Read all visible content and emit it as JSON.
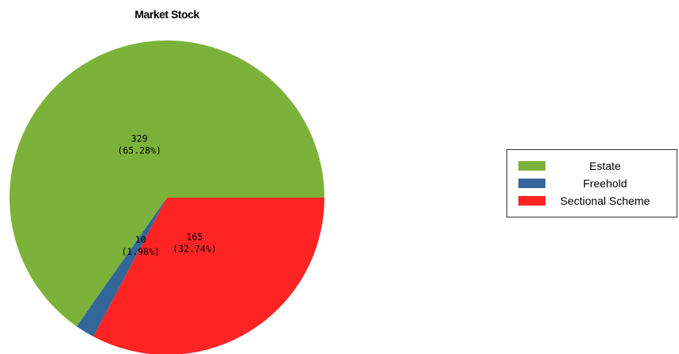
{
  "chart_data": {
    "type": "pie",
    "title": "Market Stock",
    "legend_position": "right",
    "slices": [
      {
        "name": "Estate",
        "value": 329,
        "percent": "65.28%",
        "color": "#7cb23a"
      },
      {
        "name": "Freehold",
        "value": 10,
        "percent": "1.98%",
        "color": "#336699"
      },
      {
        "name": "Sectional Scheme",
        "value": 165,
        "percent": "32.74%",
        "color": "#ff2424"
      }
    ]
  }
}
